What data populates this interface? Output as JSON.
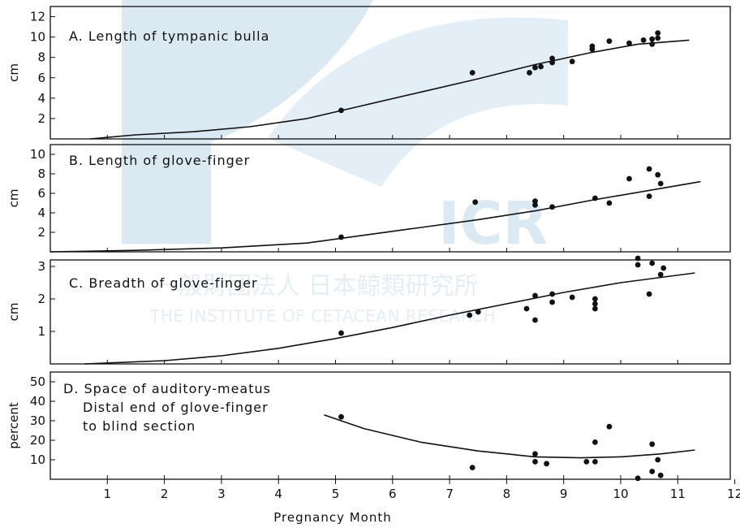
{
  "watermark": {
    "logo_text": "ICR",
    "japanese": "一般財団法人 日本鯨類研究所",
    "english": "THE INSTITUTE OF CETACEAN RESEARCH",
    "color": "#dbe9f3"
  },
  "chart_data": [
    {
      "type": "scatter",
      "panel": "A",
      "title": "A. Length of tympanic bulla",
      "ylabel": "cm",
      "ylim": [
        0,
        13
      ],
      "yticks": [
        2,
        4,
        6,
        8,
        10,
        12
      ],
      "xlim": [
        0,
        12
      ],
      "points": [
        [
          5.1,
          2.8
        ],
        [
          7.4,
          6.5
        ],
        [
          8.4,
          6.5
        ],
        [
          8.5,
          7.0
        ],
        [
          8.6,
          7.1
        ],
        [
          8.8,
          7.5
        ],
        [
          8.8,
          7.9
        ],
        [
          9.15,
          7.6
        ],
        [
          9.5,
          8.8
        ],
        [
          9.5,
          9.1
        ],
        [
          9.8,
          9.6
        ],
        [
          10.15,
          9.4
        ],
        [
          10.4,
          9.7
        ],
        [
          10.55,
          9.3
        ],
        [
          10.55,
          9.8
        ],
        [
          10.65,
          9.9
        ],
        [
          10.65,
          10.4
        ]
      ],
      "curve": [
        [
          0.7,
          0.0
        ],
        [
          1.5,
          0.4
        ],
        [
          2.5,
          0.7
        ],
        [
          3.5,
          1.2
        ],
        [
          4.5,
          2.0
        ],
        [
          5.5,
          3.3
        ],
        [
          6.5,
          4.6
        ],
        [
          7.5,
          5.9
        ],
        [
          8.5,
          7.3
        ],
        [
          9.5,
          8.5
        ],
        [
          10.3,
          9.3
        ],
        [
          11.2,
          9.7
        ]
      ],
      "series": [
        {
          "name": "",
          "color": "#111111"
        }
      ]
    },
    {
      "type": "scatter",
      "panel": "B",
      "title": "B. Length of glove-finger",
      "ylabel": "cm",
      "ylim": [
        0,
        11
      ],
      "yticks": [
        2,
        4,
        6,
        8,
        10
      ],
      "xlim": [
        0,
        12
      ],
      "points": [
        [
          5.1,
          1.5
        ],
        [
          7.45,
          5.1
        ],
        [
          8.5,
          4.8
        ],
        [
          8.5,
          5.2
        ],
        [
          8.8,
          4.6
        ],
        [
          9.55,
          5.5
        ],
        [
          9.8,
          5.0
        ],
        [
          10.15,
          7.5
        ],
        [
          10.5,
          5.7
        ],
        [
          10.5,
          8.5
        ],
        [
          10.65,
          7.9
        ],
        [
          10.7,
          7.0
        ]
      ],
      "curve": [
        [
          0.0,
          0.0
        ],
        [
          1.5,
          0.15
        ],
        [
          3.0,
          0.4
        ],
        [
          4.5,
          0.9
        ],
        [
          5.5,
          1.7
        ],
        [
          6.5,
          2.5
        ],
        [
          7.5,
          3.3
        ],
        [
          8.5,
          4.2
        ],
        [
          9.5,
          5.3
        ],
        [
          10.5,
          6.3
        ],
        [
          11.4,
          7.2
        ]
      ],
      "series": [
        {
          "name": "",
          "color": "#111111"
        }
      ]
    },
    {
      "type": "scatter",
      "panel": "C",
      "title": "C. Breadth of glove-finger",
      "ylabel": "cm",
      "ylim": [
        0,
        3.2
      ],
      "yticks": [
        1,
        2,
        3
      ],
      "xlim": [
        0,
        12
      ],
      "points": [
        [
          5.1,
          0.95
        ],
        [
          7.35,
          1.5
        ],
        [
          7.5,
          1.6
        ],
        [
          8.35,
          1.7
        ],
        [
          8.5,
          1.35
        ],
        [
          8.5,
          2.1
        ],
        [
          8.8,
          1.9
        ],
        [
          8.8,
          2.15
        ],
        [
          9.15,
          2.05
        ],
        [
          9.55,
          1.7
        ],
        [
          9.55,
          1.85
        ],
        [
          9.55,
          2.0
        ],
        [
          10.3,
          3.05
        ],
        [
          10.3,
          3.25
        ],
        [
          10.5,
          2.15
        ],
        [
          10.55,
          3.1
        ],
        [
          10.7,
          2.75
        ],
        [
          10.75,
          2.95
        ]
      ],
      "curve": [
        [
          0.6,
          0.0
        ],
        [
          2.0,
          0.1
        ],
        [
          3.0,
          0.25
        ],
        [
          4.0,
          0.48
        ],
        [
          5.0,
          0.78
        ],
        [
          6.0,
          1.12
        ],
        [
          7.0,
          1.5
        ],
        [
          8.0,
          1.85
        ],
        [
          9.0,
          2.2
        ],
        [
          10.0,
          2.5
        ],
        [
          11.3,
          2.8
        ]
      ],
      "series": [
        {
          "name": "",
          "color": "#111111"
        }
      ]
    },
    {
      "type": "scatter",
      "panel": "D",
      "title_lines": [
        "D. Space of auditory-meatus",
        "Distal end of glove-finger",
        "to blind section"
      ],
      "ylabel": "percent",
      "ylim": [
        0,
        55
      ],
      "yticks": [
        10,
        20,
        30,
        40,
        50
      ],
      "xlim": [
        0,
        12
      ],
      "xticks": [
        1,
        2,
        3,
        4,
        5,
        6,
        7,
        8,
        9,
        10,
        11,
        12
      ],
      "xlabel": "Pregnancy Month",
      "points": [
        [
          5.1,
          32
        ],
        [
          7.4,
          6
        ],
        [
          8.5,
          9
        ],
        [
          8.5,
          13
        ],
        [
          8.7,
          8
        ],
        [
          9.4,
          9
        ],
        [
          9.55,
          9
        ],
        [
          9.55,
          19
        ],
        [
          9.8,
          27
        ],
        [
          10.3,
          0.5
        ],
        [
          10.55,
          4
        ],
        [
          10.55,
          18
        ],
        [
          10.65,
          10
        ],
        [
          10.7,
          2
        ]
      ],
      "curve": [
        [
          4.8,
          33
        ],
        [
          5.5,
          26
        ],
        [
          6.5,
          19
        ],
        [
          7.5,
          14.5
        ],
        [
          8.5,
          11.5
        ],
        [
          9.3,
          11
        ],
        [
          10.0,
          11.5
        ],
        [
          10.7,
          13
        ],
        [
          11.3,
          15
        ]
      ],
      "series": [
        {
          "name": "",
          "color": "#111111"
        }
      ]
    }
  ]
}
